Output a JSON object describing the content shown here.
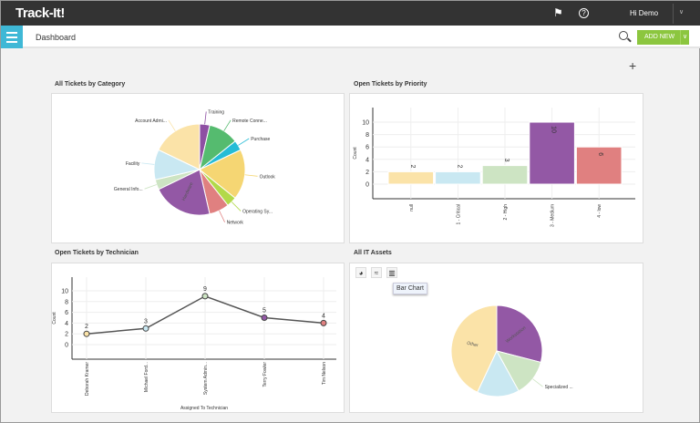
{
  "app": {
    "title": "Track-It!",
    "user": "Hi Demo",
    "icons": [
      "announcement-flag-icon",
      "help-icon",
      "chevron-down-icon"
    ]
  },
  "header": {
    "breadcrumb": "Dashboard",
    "add_new": "ADD NEW",
    "add_widget": "+"
  },
  "colors": {
    "topbar": "#333333",
    "menu": "#3fb8d6",
    "add_new": "#8cc63f"
  },
  "widgets": {
    "category": {
      "title": "All Tickets by Category"
    },
    "priority": {
      "title": "Open Tickets by Priority"
    },
    "technician": {
      "title": "Open Tickets by Technician"
    },
    "assets": {
      "title": "All IT Assets",
      "toolbar": [
        "pie-chart-icon",
        "line-chart-icon",
        "bar-chart-icon"
      ],
      "tooltip": "Bar Chart"
    }
  },
  "chart_data": [
    {
      "type": "pie",
      "title": "All Tickets by Category",
      "labels": [
        "Training",
        "Remote Conne...",
        "Purchase",
        "Outlook",
        "Operating Sy...",
        "Network",
        "Hardware",
        "General Info...",
        "Facility",
        "Account Admi..."
      ],
      "values": [
        3.6,
        10.7,
        3.6,
        17.9,
        3.6,
        7.1,
        21.4,
        3.6,
        10.7,
        17.9
      ],
      "colors": [
        "#8e4fa3",
        "#55bb6f",
        "#25bcd6",
        "#f5d673",
        "#b2d94a",
        "#e08080",
        "#9358a5",
        "#cde4c3",
        "#c9e8f2",
        "#fbe3a8"
      ]
    },
    {
      "type": "bar",
      "title": "Open Tickets by Priority",
      "xlabel": "Priority",
      "ylabel": "Count",
      "categories": [
        "null",
        "1 - Critical",
        "2 - High",
        "3 - Medium",
        "4 - low"
      ],
      "values": [
        2,
        2,
        3,
        10,
        6
      ],
      "yticks": [
        0,
        2,
        4,
        6,
        8,
        10
      ],
      "ylim": [
        -2,
        12
      ],
      "grid": true,
      "colors": [
        "#fbe3a8",
        "#c9e8f2",
        "#cde4c3",
        "#9358a5",
        "#e08080"
      ]
    },
    {
      "type": "line",
      "title": "Open Tickets by Technician",
      "xlabel": "Assigned To Technician",
      "ylabel": "Count",
      "categories": [
        "Deborah Kramer",
        "Michael Ford...",
        "System Admin...",
        "Terry Fowler",
        "Tim Nelson"
      ],
      "values": [
        2,
        3,
        9,
        5,
        4
      ],
      "yticks": [
        0,
        2,
        4,
        6,
        8,
        10
      ],
      "ylim": [
        -2,
        12
      ],
      "grid": true,
      "colors": [
        "#fbe3a8",
        "#c9e8f2",
        "#cde4c3",
        "#9358a5",
        "#e08080"
      ]
    },
    {
      "type": "pie",
      "title": "All IT Assets",
      "labels": [
        "Workstation",
        "Specialized ...",
        "",
        "Other"
      ],
      "values": [
        29,
        13,
        15,
        43
      ],
      "colors": [
        "#9358a5",
        "#cde4c3",
        "#c9e8f2",
        "#fbe3a8"
      ]
    }
  ]
}
